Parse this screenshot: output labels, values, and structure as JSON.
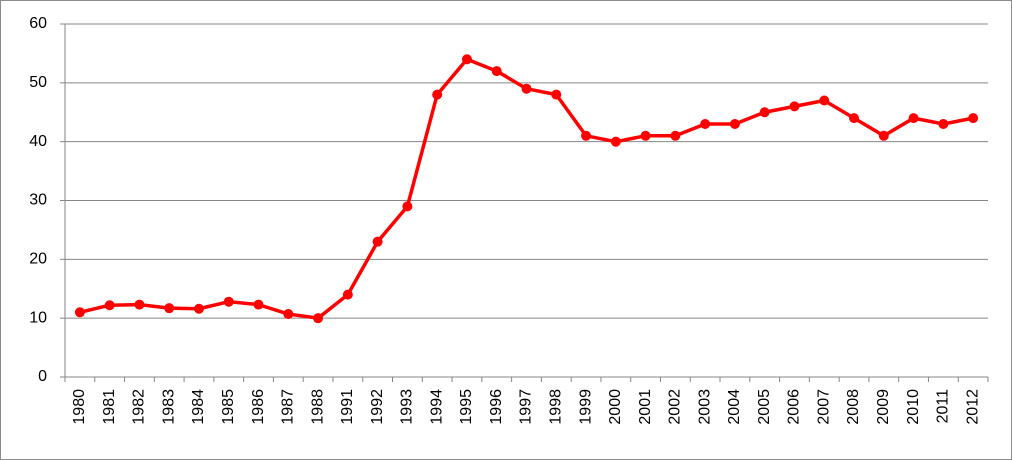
{
  "chart_data": {
    "type": "line",
    "categories": [
      "1980",
      "1981",
      "1982",
      "1983",
      "1984",
      "1985",
      "1986",
      "1987",
      "1988",
      "1991",
      "1992",
      "1993",
      "1994",
      "1995",
      "1996",
      "1997",
      "1998",
      "1999",
      "2000",
      "2001",
      "2002",
      "2003",
      "2004",
      "2005",
      "2006",
      "2007",
      "2008",
      "2009",
      "2010",
      "2011",
      "2012"
    ],
    "series": [
      {
        "color": "#ff0000",
        "values": [
          11,
          12.2,
          12.3,
          11.7,
          11.6,
          12.8,
          12.3,
          10.7,
          10,
          14,
          23,
          29,
          48,
          54,
          52,
          49,
          48,
          41,
          40,
          41,
          41,
          43,
          43,
          45,
          46,
          47,
          44,
          41,
          44,
          43,
          44
        ]
      }
    ],
    "ylim": [
      0,
      60
    ],
    "yticks": [
      0,
      10,
      20,
      30,
      40,
      50,
      60
    ],
    "grid": true
  }
}
